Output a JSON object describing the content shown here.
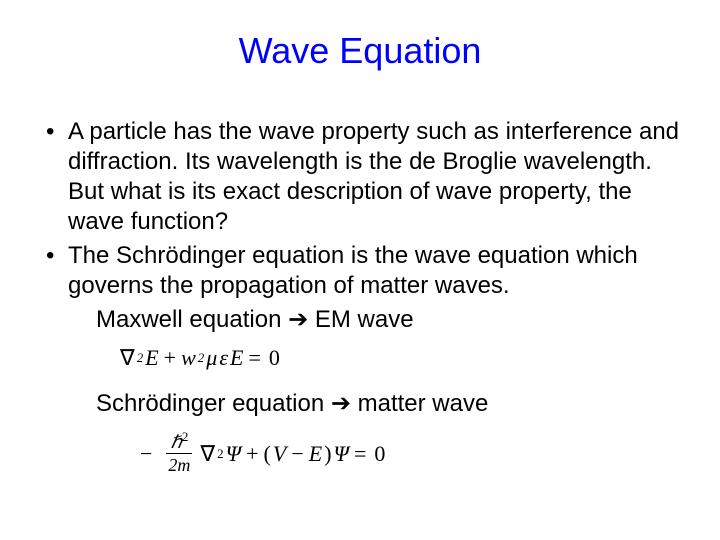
{
  "title": "Wave Equation",
  "bullets": [
    "A particle has the wave property such as interference and diffraction.  Its wavelength is the de Broglie wavelength.  But what is its exact description of wave property, the wave function?",
    "The Schrödinger equation is the wave equation which governs the propagation of matter waves."
  ],
  "sublines": {
    "maxwell": "Maxwell equation ➔ EM wave",
    "schrodinger": "Schrödinger equation ➔ matter wave"
  },
  "equations": {
    "maxwell": {
      "nabla": "∇",
      "sup2a": "2",
      "E": "E",
      "plus": "+",
      "w": "w",
      "sup2b": "2",
      "mu": "μ",
      "eps": "ε",
      "E2": "E",
      "eq": "=",
      "zero": "0"
    },
    "schrodinger": {
      "minus": "−",
      "hbar_num": "ℏ",
      "hbar_sup": "2",
      "den": "2m",
      "nabla": "∇",
      "sup2": "2",
      "psi1": "Ψ",
      "plus": "+",
      "lpar": "(",
      "V": "V",
      "sub": "−",
      "E": "E",
      "rpar": ")",
      "psi2": "Ψ",
      "eq": "=",
      "zero": "0"
    }
  },
  "colors": {
    "title": "#0000ff",
    "text": "#000000",
    "background": "#ffffff"
  }
}
